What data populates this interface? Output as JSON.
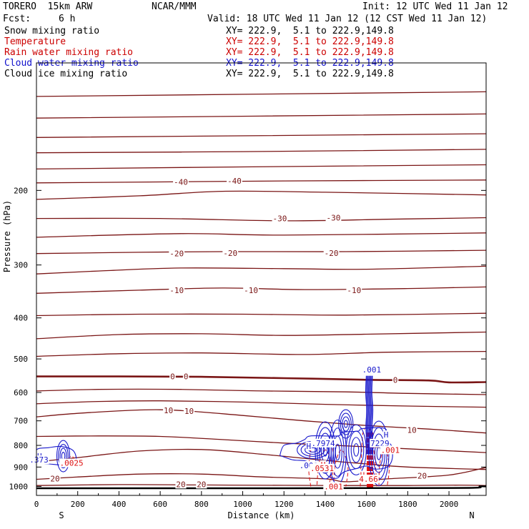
{
  "header": {
    "model": "TORERO  15km ARW",
    "org": "NCAR/MMM",
    "init": "Init: 12 UTC Wed 11 Jan 12",
    "fcst_label": "Fcst:",
    "fcst_value": "6 h",
    "valid": "Valid: 18 UTC Wed 11 Jan 12 (12 CST Wed 11 Jan 12)"
  },
  "legend": [
    {
      "label": "Snow mixing ratio",
      "range": "XY= 222.9,  5.1 to 222.9,149.8",
      "color": "#000000"
    },
    {
      "label": "Temperature",
      "range": "XY= 222.9,  5.1 to 222.9,149.8",
      "color": "#cc0000"
    },
    {
      "label": "Rain water mixing ratio",
      "range": "XY= 222.9,  5.1 to 222.9,149.8",
      "color": "#cc0000"
    },
    {
      "label": "Cloud water mixing ratio",
      "range": "XY= 222.9,  5.1 to 222.9,149.8",
      "color": "#1010cc"
    },
    {
      "label": "Cloud ice mixing ratio",
      "range": "XY= 222.9,  5.1 to 222.9,149.8",
      "color": "#000000"
    }
  ],
  "chart_data": {
    "type": "line",
    "xlabel": "Distance (km)",
    "ylabel": "Pressure (hPa)",
    "xlim": [
      0,
      2180
    ],
    "ylim": [
      1050,
      100
    ],
    "y_scale": "log",
    "x_ticks": [
      0,
      200,
      400,
      600,
      800,
      1000,
      1200,
      1400,
      1600,
      1800,
      2000
    ],
    "y_ticks": [
      200,
      300,
      400,
      500,
      600,
      700,
      800,
      900,
      1000
    ],
    "end_labels": {
      "left": "S",
      "right": "N"
    },
    "colors": {
      "temperature": "#7a1515",
      "rain": "#dd1111",
      "cloud_water": "#1a1acc",
      "ground": "#000000"
    },
    "temperature_isotherms": [
      {
        "level": -50,
        "points": [
          [
            0,
            120
          ],
          [
            2180,
            117
          ]
        ]
      },
      {
        "level": -50,
        "points": [
          [
            0,
            135
          ],
          [
            2180,
            132
          ]
        ]
      },
      {
        "level": -50,
        "points": [
          [
            0,
            150
          ],
          [
            2180,
            147
          ]
        ]
      },
      {
        "level": -50,
        "points": [
          [
            0,
            163
          ],
          [
            1000,
            162
          ],
          [
            2180,
            160
          ]
        ]
      },
      {
        "level": -50,
        "points": [
          [
            0,
            178
          ],
          [
            1000,
            176
          ],
          [
            2180,
            174
          ]
        ]
      },
      {
        "level": -40,
        "points": [
          [
            0,
            192
          ],
          [
            600,
            191
          ],
          [
            1200,
            190
          ],
          [
            2180,
            189
          ]
        ]
      },
      {
        "level": -40,
        "points": [
          [
            0,
            210
          ],
          [
            500,
            206
          ],
          [
            900,
            201
          ],
          [
            1400,
            202
          ],
          [
            2180,
            205
          ]
        ]
      },
      {
        "level": -30,
        "points": [
          [
            0,
            233
          ],
          [
            600,
            233
          ],
          [
            1200,
            236
          ],
          [
            1700,
            234
          ],
          [
            2180,
            232
          ]
        ]
      },
      {
        "level": -30,
        "points": [
          [
            0,
            258
          ],
          [
            700,
            253
          ],
          [
            1200,
            255
          ],
          [
            2180,
            252
          ]
        ]
      },
      {
        "level": -20,
        "points": [
          [
            0,
            282
          ],
          [
            500,
            280
          ],
          [
            900,
            279
          ],
          [
            1500,
            279
          ],
          [
            2180,
            277
          ]
        ]
      },
      {
        "level": -20,
        "points": [
          [
            0,
            315
          ],
          [
            300,
            310
          ],
          [
            700,
            305
          ],
          [
            1200,
            306
          ],
          [
            1600,
            307
          ],
          [
            2180,
            302
          ]
        ]
      },
      {
        "level": -10,
        "points": [
          [
            0,
            350
          ],
          [
            500,
            344
          ],
          [
            900,
            340
          ],
          [
            1300,
            343
          ],
          [
            1800,
            341
          ],
          [
            2180,
            338
          ]
        ]
      },
      {
        "level": -10,
        "points": [
          [
            0,
            395
          ],
          [
            500,
            392
          ],
          [
            1000,
            392
          ],
          [
            1500,
            394
          ],
          [
            2180,
            390
          ]
        ]
      },
      {
        "level": -10,
        "points": [
          [
            0,
            448
          ],
          [
            400,
            438
          ],
          [
            800,
            436
          ],
          [
            1200,
            440
          ],
          [
            1600,
            437
          ],
          [
            2180,
            432
          ]
        ]
      },
      {
        "level": -10,
        "points": [
          [
            0,
            493
          ],
          [
            400,
            486
          ],
          [
            800,
            484
          ],
          [
            1300,
            488
          ],
          [
            1700,
            482
          ],
          [
            2180,
            480
          ]
        ]
      },
      {
        "level": 0,
        "points": [
          [
            0,
            550
          ],
          [
            400,
            550
          ],
          [
            800,
            551
          ],
          [
            1200,
            555
          ],
          [
            1600,
            560
          ],
          [
            1900,
            562
          ],
          [
            2000,
            568
          ],
          [
            2180,
            567
          ]
        ]
      },
      {
        "level": 0,
        "points": [
          [
            0,
            595
          ],
          [
            300,
            590
          ],
          [
            700,
            590
          ],
          [
            1100,
            595
          ],
          [
            1500,
            598
          ],
          [
            1800,
            603
          ],
          [
            2180,
            607
          ]
        ]
      },
      {
        "level": 0,
        "points": [
          [
            0,
            638
          ],
          [
            300,
            630
          ],
          [
            600,
            628
          ],
          [
            1000,
            632
          ],
          [
            1400,
            640
          ],
          [
            1800,
            646
          ],
          [
            2180,
            650
          ]
        ]
      },
      {
        "level": 10,
        "points": [
          [
            0,
            685
          ],
          [
            200,
            672
          ],
          [
            500,
            660
          ],
          [
            700,
            662
          ],
          [
            1000,
            680
          ],
          [
            1300,
            700
          ],
          [
            1600,
            718
          ],
          [
            1900,
            732
          ],
          [
            2180,
            748
          ]
        ]
      },
      {
        "level": 10,
        "points": [
          [
            0,
            762
          ],
          [
            300,
            760
          ],
          [
            600,
            762
          ],
          [
            900,
            775
          ],
          [
            1200,
            790
          ],
          [
            1500,
            802
          ],
          [
            1800,
            815
          ],
          [
            2180,
            832
          ]
        ]
      },
      {
        "level": 10,
        "points": [
          [
            0,
            875
          ],
          [
            200,
            855
          ],
          [
            500,
            825
          ],
          [
            800,
            818
          ],
          [
            1100,
            840
          ],
          [
            1400,
            868
          ],
          [
            1600,
            885
          ],
          [
            1800,
            900
          ],
          [
            2180,
            912
          ]
        ]
      },
      {
        "level": 20,
        "points": [
          [
            0,
            962
          ],
          [
            200,
            950
          ],
          [
            500,
            935
          ],
          [
            800,
            935
          ],
          [
            1100,
            950
          ],
          [
            1400,
            960
          ],
          [
            1500,
            975
          ],
          [
            1700,
            960
          ],
          [
            2000,
            940
          ],
          [
            2180,
            902
          ]
        ]
      },
      {
        "level": 20,
        "points": [
          [
            0,
            995
          ],
          [
            400,
            990
          ],
          [
            800,
            992
          ],
          [
            1200,
            994
          ],
          [
            1500,
            995
          ],
          [
            1800,
            995
          ],
          [
            2050,
            993
          ],
          [
            2180,
            995
          ]
        ]
      }
    ],
    "temperature_labels": [
      {
        "text": "-40",
        "x": 700,
        "p": 191
      },
      {
        "text": "-40",
        "x": 960,
        "p": 190
      },
      {
        "text": "-30",
        "x": 1180,
        "p": 233
      },
      {
        "text": "-30",
        "x": 1440,
        "p": 232
      },
      {
        "text": "-20",
        "x": 680,
        "p": 282
      },
      {
        "text": "-20",
        "x": 940,
        "p": 281
      },
      {
        "text": "-20",
        "x": 1430,
        "p": 281
      },
      {
        "text": "-10",
        "x": 680,
        "p": 344
      },
      {
        "text": "-10",
        "x": 1040,
        "p": 344
      },
      {
        "text": "-10",
        "x": 1540,
        "p": 344
      },
      {
        "text": "0",
        "x": 660,
        "p": 550
      },
      {
        "text": "0",
        "x": 725,
        "p": 550
      },
      {
        "text": "0",
        "x": 1740,
        "p": 560
      },
      {
        "text": "10",
        "x": 640,
        "p": 661
      },
      {
        "text": "10",
        "x": 740,
        "p": 664
      },
      {
        "text": "10",
        "x": 1820,
        "p": 736
      },
      {
        "text": "20",
        "x": 90,
        "p": 958
      },
      {
        "text": "20",
        "x": 700,
        "p": 988
      },
      {
        "text": "20",
        "x": 800,
        "p": 988
      },
      {
        "text": "20",
        "x": 1870,
        "p": 944
      }
    ],
    "cloud_water_labels": [
      {
        "text": ".001",
        "x": 1625,
        "p": 530
      },
      {
        "text": "H",
        "x": 15,
        "p": 848
      },
      {
        "text": ".373",
        "x": 12,
        "p": 865
      },
      {
        "text": ".7974",
        "x": 1390,
        "p": 790
      },
      {
        "text": "H",
        "x": 1320,
        "p": 803
      },
      {
        "text": ".001",
        "x": 1320,
        "p": 892
      },
      {
        "text": "H",
        "x": 1360,
        "p": 900
      },
      {
        "text": "7229",
        "x": 1665,
        "p": 790
      },
      {
        "text": "H",
        "x": 1695,
        "p": 755
      }
    ],
    "rain_labels": [
      {
        "text": ".0025",
        "x": 170,
        "p": 880
      },
      {
        "text": "H",
        "x": 1390,
        "p": 888
      },
      {
        "text": ".0531",
        "x": 1385,
        "p": 905
      },
      {
        "text": "H",
        "x": 1580,
        "p": 940
      },
      {
        "text": "4.66",
        "x": 1610,
        "p": 960
      },
      {
        "text": ".001",
        "x": 1440,
        "p": 1000
      },
      {
        "text": ".001",
        "x": 1715,
        "p": 820
      }
    ]
  }
}
